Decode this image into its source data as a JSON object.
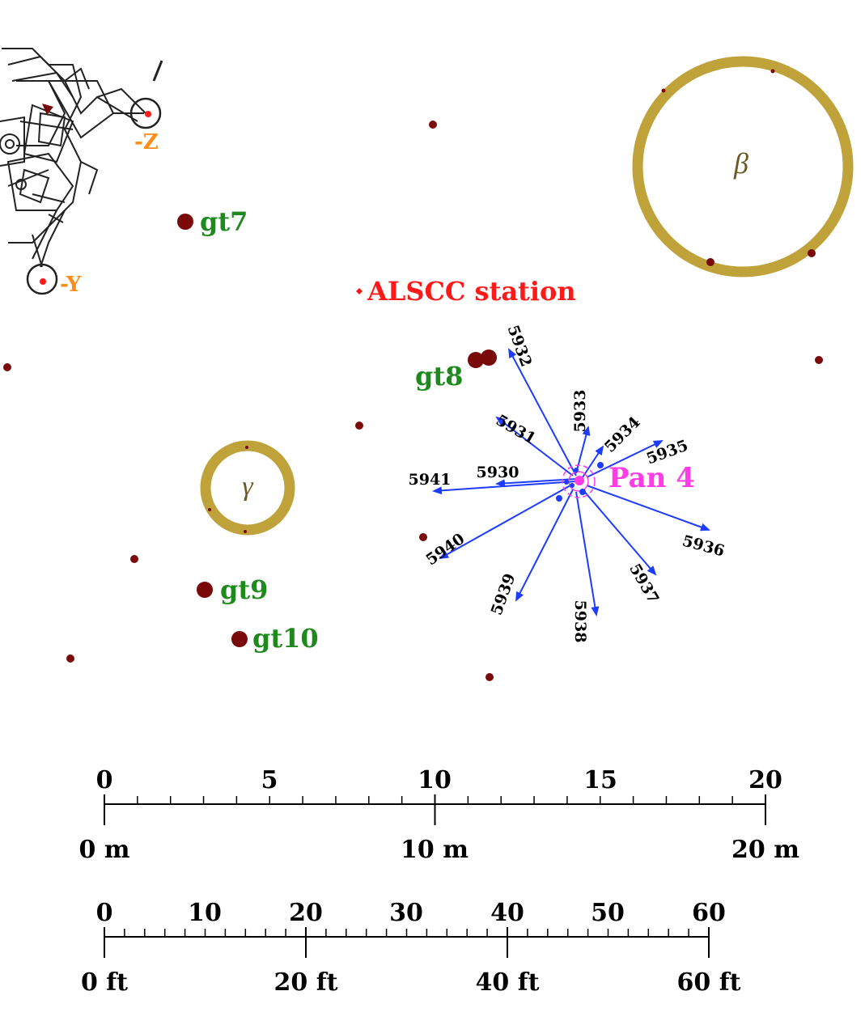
{
  "lm_labels": {
    "minus_z": "-Z",
    "minus_y": "-Y"
  },
  "station": {
    "label": "ALSCC station"
  },
  "pan": {
    "label": "Pan 4"
  },
  "craters": {
    "beta": "β",
    "gamma": "γ"
  },
  "sampling_points": [
    {
      "id": "gt7",
      "label": "gt7"
    },
    {
      "id": "gt8",
      "label": "gt8"
    },
    {
      "id": "gt9",
      "label": "gt9"
    },
    {
      "id": "gt10",
      "label": "gt10"
    }
  ],
  "photos": [
    "5930",
    "5931",
    "5932",
    "5933",
    "5934",
    "5935",
    "5936",
    "5937",
    "5938",
    "5939",
    "5940",
    "5941"
  ],
  "scale_bars": {
    "meters": {
      "ticks": [
        "0",
        "5",
        "10",
        "15",
        "20"
      ],
      "labels": [
        "0 m",
        "10 m",
        "20 m"
      ]
    },
    "feet": {
      "ticks": [
        "0",
        "10",
        "20",
        "30",
        "40",
        "50",
        "60"
      ],
      "labels": [
        "0 ft",
        "20 ft",
        "40 ft",
        "60 ft"
      ]
    }
  },
  "colors": {
    "rock": "#7a0a0a",
    "crater_ring": "#c0a23a",
    "gt_label": "#1e8a1e",
    "station": "#ff1a1a",
    "pan": "#ff3ce6",
    "arrow": "#1e3cff",
    "lm_label": "#ff8c1a"
  }
}
